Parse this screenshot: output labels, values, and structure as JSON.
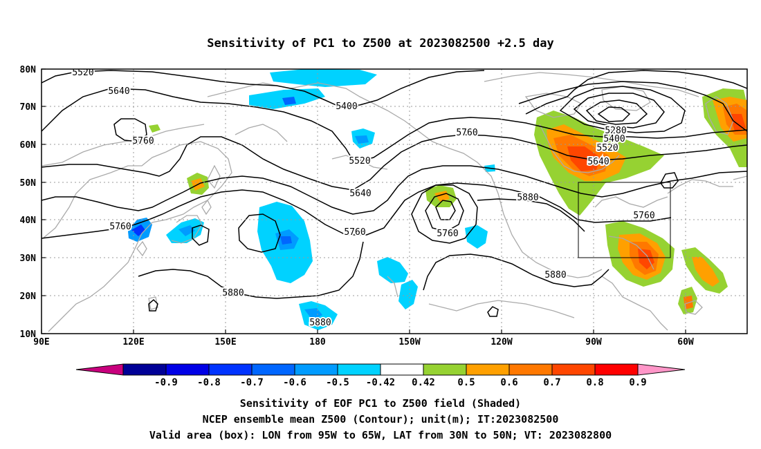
{
  "title": "Sensitivity of PC1 to Z500 at 2023082500 +2.5 day",
  "map": {
    "lat_labels": [
      "80N",
      "70N",
      "60N",
      "50N",
      "40N",
      "30N",
      "20N",
      "10N"
    ],
    "lon_labels": [
      "90E",
      "120E",
      "150E",
      "180",
      "150W",
      "120W",
      "90W",
      "60W"
    ],
    "contour_labels": [
      "5520",
      "5640",
      "5760",
      "5400",
      "5520",
      "5760",
      "5640",
      "5760",
      "5760",
      "5760",
      "5880",
      "5880",
      "5880",
      "5880",
      "5280",
      "5400",
      "5520",
      "5640",
      "5760"
    ],
    "valid_box": {
      "lon_range": [
        "95W",
        "65W"
      ],
      "lat_range": [
        "30N",
        "50N"
      ]
    }
  },
  "colorbar": {
    "labels": [
      "-0.9",
      "-0.8",
      "-0.7",
      "-0.6",
      "-0.5",
      "-0.42",
      "0.42",
      "0.5",
      "0.6",
      "0.7",
      "0.8",
      "0.9"
    ],
    "colors": [
      "#000096",
      "#0000e6",
      "#0033ff",
      "#0066ff",
      "#009bff",
      "#00d2ff",
      "#ffffff",
      "#96d232",
      "#ffa000",
      "#ff7800",
      "#ff4600",
      "#ff0000"
    ],
    "low_end_color": "#c8007d",
    "high_end_color": "#ff96c8"
  },
  "caption": [
    "Sensitivity of EOF PC1 to Z500 field (Shaded)",
    "NCEP ensemble mean Z500 (Contour); unit(m); IT:2023082500",
    "Valid area (box): LON from 95W to 65W, LAT from 30N to 50N; VT: 2023082800"
  ]
}
